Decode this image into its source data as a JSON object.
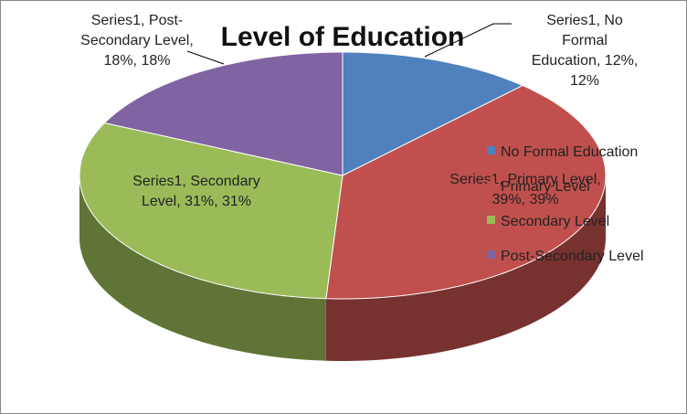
{
  "chart_data": {
    "type": "pie3d",
    "title": "Level of Education",
    "categories": [
      "No Formal Education",
      "Primary Level",
      "Secondary Level",
      "Post-Secondary Level"
    ],
    "values": [
      12,
      39,
      31,
      18
    ],
    "value_labels": [
      "Series1, No Formal Education, 12%, 12%",
      "Series1, Primary Level, 39%, 39%",
      "Series1, Secondary Level, 31%, 31%",
      "Series1, Post-Secondary Level, 18%, 18%"
    ],
    "colors": [
      "#4f81bd",
      "#c0504d",
      "#9bbb59",
      "#8064a2"
    ],
    "legend": "right"
  }
}
